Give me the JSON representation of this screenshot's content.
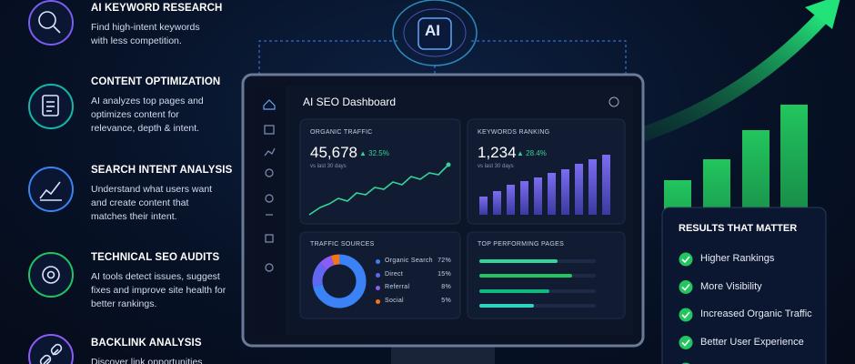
{
  "features": [
    {
      "title": "AI KEYWORD RESEARCH",
      "description": "Find high-intent keywords with less competition."
    },
    {
      "title": "CONTENT OPTIMIZATION",
      "description": "AI analyzes top pages and optimizes content for relevance, depth & intent."
    },
    {
      "title": "SEARCH INTENT ANALYSIS",
      "description": "Understand what users want and create content that matches their intent."
    },
    {
      "title": "TECHNICAL SEO AUDITS",
      "description": "AI tools detect issues, suggest fixes and improve site health for better rankings."
    },
    {
      "title": "BACKLINK ANALYSIS",
      "description": "Discover link opportunities"
    }
  ],
  "badge": "AI",
  "dashboard": {
    "title": "AI SEO Dashboard",
    "organic_traffic": {
      "label": "ORGANIC TRAFFIC",
      "value": "45,678",
      "change": "32.5%",
      "period": "vs last 30 days"
    },
    "keywords_ranking": {
      "label": "KEYWORDS RANKING",
      "value": "1,234",
      "change": "28.4%",
      "period": "vs last 30 days"
    },
    "traffic_sources": {
      "title": "TRAFFIC SOURCES",
      "names": [
        "Organic Search",
        "Direct",
        "Referral",
        "Social"
      ],
      "values": [
        72,
        15,
        8,
        5
      ],
      "value_labels": [
        "72%",
        "15%",
        "8%",
        "5%"
      ],
      "colors": [
        "#3b82f6",
        "#6366f1",
        "#8b5cf6",
        "#f97316"
      ]
    },
    "top_pages": {
      "title": "TOP PERFORMING PAGES"
    }
  },
  "results": {
    "title": "RESULTS THAT MATTER",
    "items": [
      "Higher Rankings",
      "More Visibility",
      "Increased Organic Traffic",
      "Better User Experience"
    ]
  }
}
